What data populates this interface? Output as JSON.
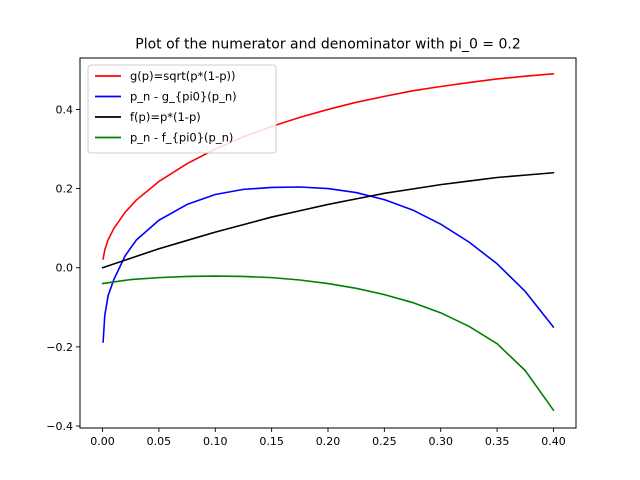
{
  "chart_data": {
    "type": "line",
    "title": "Plot of the numerator and denominator with pi_0 = 0.2",
    "xlabel": "",
    "ylabel": "",
    "xlim": [
      -0.02,
      0.42
    ],
    "ylim": [
      -0.405,
      0.53
    ],
    "xticks": [
      0.0,
      0.05,
      0.1,
      0.15,
      0.2,
      0.25,
      0.3,
      0.35,
      0.4
    ],
    "xtick_labels": [
      "0.00",
      "0.05",
      "0.10",
      "0.15",
      "0.20",
      "0.25",
      "0.30",
      "0.35",
      "0.40"
    ],
    "yticks": [
      -0.4,
      -0.2,
      0.0,
      0.2,
      0.4
    ],
    "ytick_labels": [
      "−0.4",
      "−0.2",
      "0.0",
      "0.2",
      "0.4"
    ],
    "grid": false,
    "legend_position": "top-left",
    "series": [
      {
        "name": "g(p)=sqrt(p*(1-p))",
        "color": "#ff0000",
        "x": [
          0.0005,
          0.002,
          0.005,
          0.01,
          0.02,
          0.03,
          0.05,
          0.075,
          0.1,
          0.125,
          0.15,
          0.175,
          0.2,
          0.225,
          0.25,
          0.275,
          0.3,
          0.325,
          0.35,
          0.375,
          0.4
        ],
        "y": [
          0.022,
          0.045,
          0.071,
          0.099,
          0.14,
          0.171,
          0.218,
          0.263,
          0.3,
          0.331,
          0.357,
          0.38,
          0.4,
          0.418,
          0.433,
          0.447,
          0.458,
          0.468,
          0.477,
          0.484,
          0.49
        ]
      },
      {
        "name": "p_n - g_{pi0}(p_n)",
        "color": "#0000ff",
        "x": [
          0.0005,
          0.002,
          0.005,
          0.01,
          0.02,
          0.03,
          0.05,
          0.075,
          0.1,
          0.125,
          0.15,
          0.175,
          0.2,
          0.225,
          0.25,
          0.275,
          0.3,
          0.325,
          0.35,
          0.375,
          0.4
        ],
        "y": [
          -0.188,
          -0.12,
          -0.07,
          -0.03,
          0.03,
          0.07,
          0.12,
          0.16,
          0.185,
          0.198,
          0.203,
          0.204,
          0.2,
          0.19,
          0.172,
          0.146,
          0.11,
          0.065,
          0.01,
          -0.06,
          -0.15
        ]
      },
      {
        "name": "f(p)=p*(1-p)",
        "color": "#000000",
        "x": [
          0.0,
          0.025,
          0.05,
          0.075,
          0.1,
          0.125,
          0.15,
          0.175,
          0.2,
          0.225,
          0.25,
          0.275,
          0.3,
          0.325,
          0.35,
          0.375,
          0.4
        ],
        "y": [
          0.0,
          0.024,
          0.048,
          0.069,
          0.09,
          0.109,
          0.128,
          0.144,
          0.16,
          0.174,
          0.188,
          0.199,
          0.21,
          0.219,
          0.228,
          0.234,
          0.24
        ]
      },
      {
        "name": "p_n - f_{pi0}(p_n)",
        "color": "#008000",
        "x": [
          0.0,
          0.025,
          0.05,
          0.075,
          0.1,
          0.125,
          0.15,
          0.175,
          0.2,
          0.225,
          0.25,
          0.275,
          0.3,
          0.325,
          0.35,
          0.375,
          0.4
        ],
        "y": [
          -0.04,
          -0.03,
          -0.025,
          -0.022,
          -0.021,
          -0.022,
          -0.025,
          -0.031,
          -0.04,
          -0.052,
          -0.068,
          -0.088,
          -0.114,
          -0.148,
          -0.192,
          -0.26,
          -0.36
        ]
      }
    ]
  }
}
